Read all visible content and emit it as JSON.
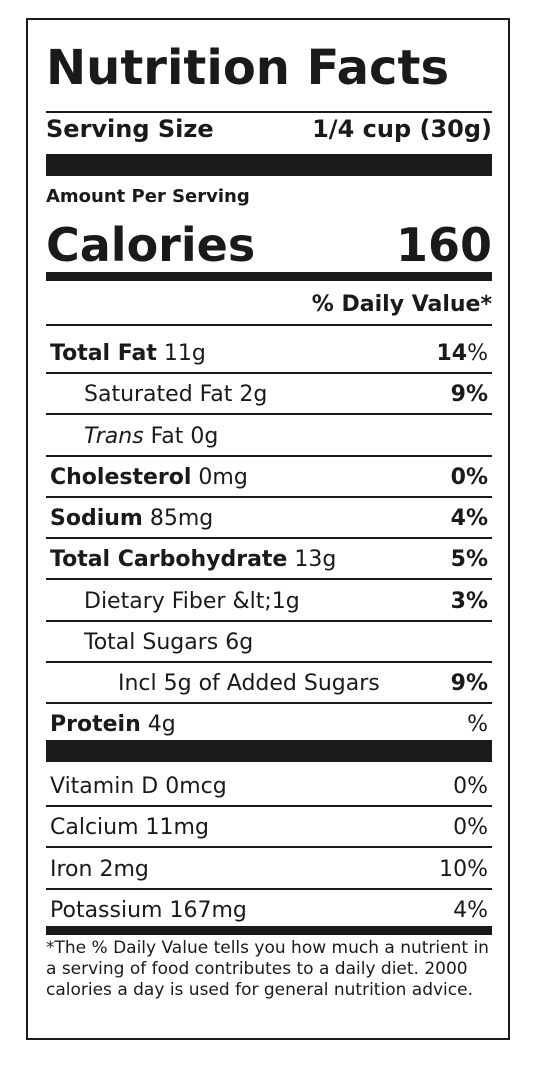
{
  "title": "Nutrition Facts",
  "serving": {
    "label": "Serving Size",
    "value": "1/4 cup (30g)"
  },
  "amount_per_serving": "Amount Per Serving",
  "calories": {
    "label": "Calories",
    "value": "160"
  },
  "daily_value_header": "% Daily Value*",
  "nutrients": [
    {
      "name": "Total Fat",
      "amount": "11g",
      "dv": "14",
      "pct_sign": "%"
    },
    {
      "name": "Saturated Fat 2g",
      "dv": "9%"
    },
    {
      "name_italic": "Trans",
      "name_rest": " Fat 0g"
    },
    {
      "name": "Cholesterol",
      "amount": "0mg",
      "dv": "0%"
    },
    {
      "name": "Sodium",
      "amount": "85mg",
      "dv": "4%"
    },
    {
      "name": "Total Carbohydrate",
      "amount": "13g",
      "dv": "5%"
    },
    {
      "name": "Dietary Fiber &lt;1g",
      "dv": "3%"
    },
    {
      "name": "Total Sugars 6g"
    },
    {
      "name": "Incl 5g of Added Sugars",
      "dv": "9%"
    },
    {
      "name": "Protein",
      "amount": "4g",
      "dv": "%"
    }
  ],
  "vitamins": [
    {
      "name": "Vitamin D 0mcg",
      "dv": "0%"
    },
    {
      "name": "Calcium 11mg",
      "dv": "0%"
    },
    {
      "name": "Iron 2mg",
      "dv": "10%"
    },
    {
      "name": "Potassium 167mg",
      "dv": "4%"
    }
  ],
  "footnote": "*The % Daily Value tells you how much a nutrient in a serving of food contributes to a daily diet. 2000 calories a day is used for general nutrition advice."
}
